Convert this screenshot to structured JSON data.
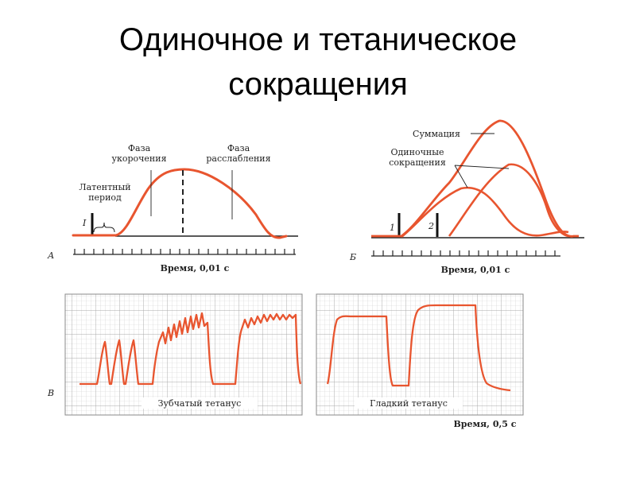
{
  "slide": {
    "title_line1": "Одиночное и тетаническое",
    "title_line2": "сокращения"
  },
  "panel_a": {
    "letter": "А",
    "phase_short_line1": "Фаза",
    "phase_short_line2": "укорочения",
    "phase_relax_line1": "Фаза",
    "phase_relax_line2": "расслабления",
    "latent_line1": "Латентный",
    "latent_line2": "период",
    "stim_label": "I",
    "time_label": "Время, 0,01 с"
  },
  "panel_b": {
    "letter": "Б",
    "summation": "Суммация",
    "single_line1": "Одиночные",
    "single_line2": "сокращения",
    "stim1": "1",
    "stim2": "2",
    "time_label": "Время, 0,01 с"
  },
  "panel_c": {
    "letter": "В",
    "serrated": "Зубчатый тетанус",
    "smooth": "Гладкий тетанус",
    "time_label": "Время, 0,5 с"
  },
  "colors": {
    "curve": "#e8552f",
    "ink": "#222222",
    "grid": "#c8c8c8"
  }
}
